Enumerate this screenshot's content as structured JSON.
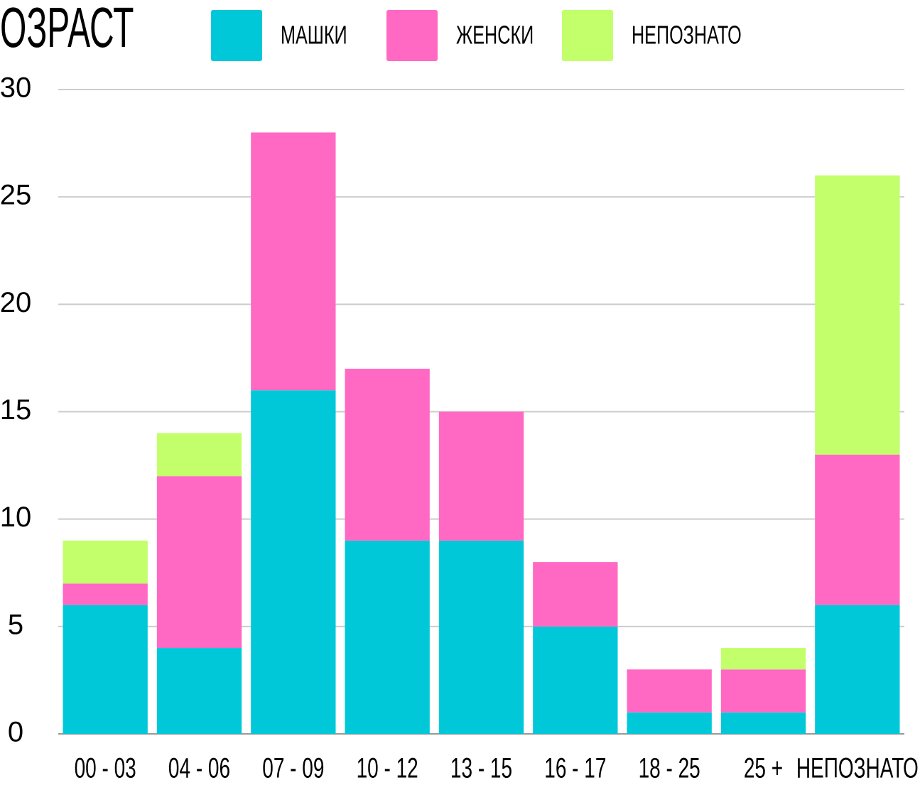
{
  "chart_data": {
    "type": "stacked-bar",
    "title": "ОЗРАСТ",
    "categories": [
      "00 - 03",
      "04 - 06",
      "07 - 09",
      "10 - 12",
      "13 - 15",
      "16 - 17",
      "18 - 25",
      "25 +",
      "НЕПОЗНАТО"
    ],
    "series": [
      {
        "name": "МАШКИ",
        "color": "#00c8d9",
        "values": [
          6,
          4,
          16,
          9,
          9,
          5,
          1,
          1,
          6
        ]
      },
      {
        "name": "ЖЕНСКИ",
        "color": "#ff69c4",
        "values": [
          1,
          8,
          12,
          8,
          6,
          3,
          2,
          2,
          7
        ]
      },
      {
        "name": "НЕПОЗНАТО",
        "color": "#c2ff6b",
        "values": [
          2,
          2,
          0,
          0,
          0,
          0,
          0,
          1,
          13
        ]
      }
    ],
    "ylim": [
      0,
      30
    ],
    "yticks": [
      0,
      5,
      10,
      15,
      20,
      25,
      30
    ],
    "grid": true
  }
}
